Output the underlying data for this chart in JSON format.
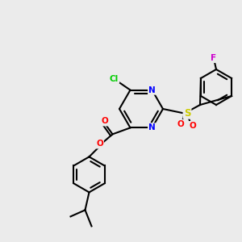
{
  "background_color": "#ebebeb",
  "bond_color": "#000000",
  "bond_width": 1.5,
  "atom_colors": {
    "N": "#0000ff",
    "O": "#ff0000",
    "Cl": "#00cc00",
    "F": "#cc00cc",
    "S": "#cccc00",
    "C": "#000000"
  },
  "font_size": 7.5
}
